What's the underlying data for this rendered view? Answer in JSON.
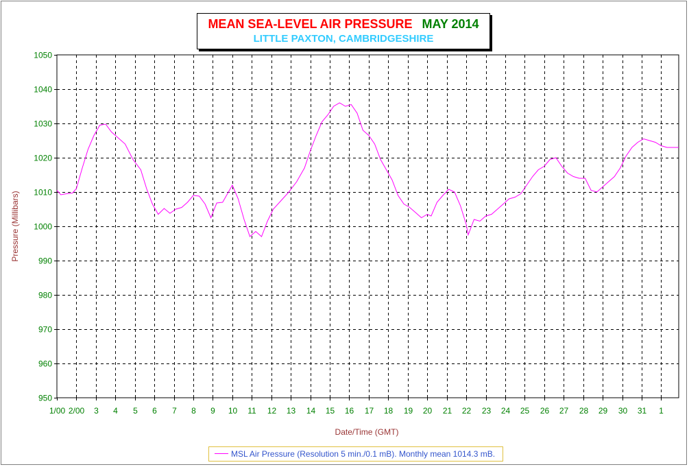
{
  "title": {
    "main": "MEAN SEA-LEVEL AIR PRESSURE",
    "date": "MAY 2014",
    "subtitle": "LITTLE PAXTON, CAMBRIDGESHIRE"
  },
  "colors": {
    "title_main": "#ff0000",
    "title_date": "#008000",
    "subtitle": "#33ccff",
    "axis_text": "#008000",
    "axis_title": "#993333",
    "series": "#ff00ff",
    "legend_text": "#3355cc",
    "grid": "#000000"
  },
  "chart_data": {
    "type": "line",
    "title": "MEAN SEA-LEVEL AIR PRESSURE   MAY 2014",
    "subtitle": "LITTLE PAXTON, CAMBRIDGESHIRE",
    "xlabel": "Date/Time (GMT)",
    "ylabel": "Pressure (Millibars)",
    "ylim": [
      950,
      1050
    ],
    "y_ticks": [
      950,
      960,
      970,
      980,
      990,
      1000,
      1010,
      1020,
      1030,
      1040,
      1050
    ],
    "xlim_days": [
      1,
      32.9
    ],
    "x_tick_labels": [
      "1/00",
      "2/00",
      "3",
      "4",
      "5",
      "6",
      "7",
      "8",
      "9",
      "10",
      "11",
      "12",
      "13",
      "14",
      "15",
      "16",
      "17",
      "18",
      "19",
      "20",
      "21",
      "22",
      "23",
      "24",
      "25",
      "26",
      "27",
      "28",
      "29",
      "30",
      "31",
      "1"
    ],
    "grid": true,
    "legend_position": "bottom-center",
    "series": [
      {
        "name": "MSL Air Pressure (Resolution 5 min./0.1 mB). Monthly mean 1014.3 mB.",
        "x": [
          1.0,
          1.2,
          1.5,
          1.8,
          2.0,
          2.3,
          2.6,
          2.9,
          3.2,
          3.5,
          3.8,
          4.2,
          4.5,
          4.9,
          5.3,
          5.6,
          5.9,
          6.2,
          6.5,
          6.8,
          7.1,
          7.4,
          7.7,
          8.0,
          8.3,
          8.6,
          8.9,
          9.2,
          9.5,
          9.8,
          10.0,
          10.3,
          10.6,
          10.9,
          11.2,
          11.5,
          11.8,
          12.1,
          12.5,
          12.9,
          13.3,
          13.7,
          14.0,
          14.3,
          14.6,
          14.9,
          15.2,
          15.5,
          15.8,
          16.1,
          16.4,
          16.7,
          17.0,
          17.3,
          17.6,
          17.9,
          18.2,
          18.5,
          18.8,
          19.1,
          19.4,
          19.7,
          20.0,
          20.2,
          20.5,
          20.8,
          21.1,
          21.4,
          21.7,
          22.0,
          22.1,
          22.4,
          22.7,
          23.0,
          23.3,
          23.6,
          23.9,
          24.2,
          24.5,
          24.8,
          25.1,
          25.4,
          25.7,
          26.0,
          26.3,
          26.6,
          26.9,
          27.2,
          27.5,
          27.8,
          28.1,
          28.4,
          28.7,
          29.0,
          29.3,
          29.6,
          29.9,
          30.2,
          30.5,
          30.8,
          31.1,
          31.4,
          31.7,
          32.0,
          32.3,
          32.6,
          32.9
        ],
        "values": [
          1010.5,
          1009.2,
          1009.5,
          1009.7,
          1011.0,
          1017.0,
          1022.5,
          1026.5,
          1029.5,
          1029.8,
          1027.5,
          1025.5,
          1024.0,
          1019.5,
          1016.5,
          1011.0,
          1006.5,
          1003.5,
          1005.2,
          1003.8,
          1005.0,
          1005.5,
          1007.0,
          1009.0,
          1008.8,
          1006.5,
          1002.5,
          1006.8,
          1007.0,
          1010.0,
          1012.0,
          1008.0,
          1002.0,
          997.0,
          998.5,
          997.0,
          1001.5,
          1005.0,
          1007.5,
          1010.0,
          1013.0,
          1017.0,
          1022.0,
          1026.5,
          1030.5,
          1032.5,
          1035.0,
          1036.0,
          1035.0,
          1035.5,
          1033.0,
          1028.0,
          1026.5,
          1024.0,
          1019.5,
          1016.5,
          1013.5,
          1009.0,
          1006.5,
          1005.5,
          1004.0,
          1002.5,
          1003.5,
          1003.0,
          1007.0,
          1009.0,
          1010.8,
          1010.0,
          1006.0,
          1000.5,
          997.5,
          1002.0,
          1001.5,
          1003.0,
          1003.5,
          1005.0,
          1006.5,
          1008.0,
          1008.5,
          1009.5,
          1012.0,
          1014.5,
          1016.5,
          1017.5,
          1019.5,
          1020.0,
          1017.5,
          1015.5,
          1014.5,
          1014.0,
          1014.0,
          1010.5,
          1010.0,
          1011.5,
          1013.0,
          1014.5,
          1017.0,
          1020.5,
          1023.0,
          1024.5,
          1025.5,
          1025.0,
          1024.5,
          1023.5,
          1023.0,
          1023.0,
          1023.0
        ]
      }
    ]
  }
}
